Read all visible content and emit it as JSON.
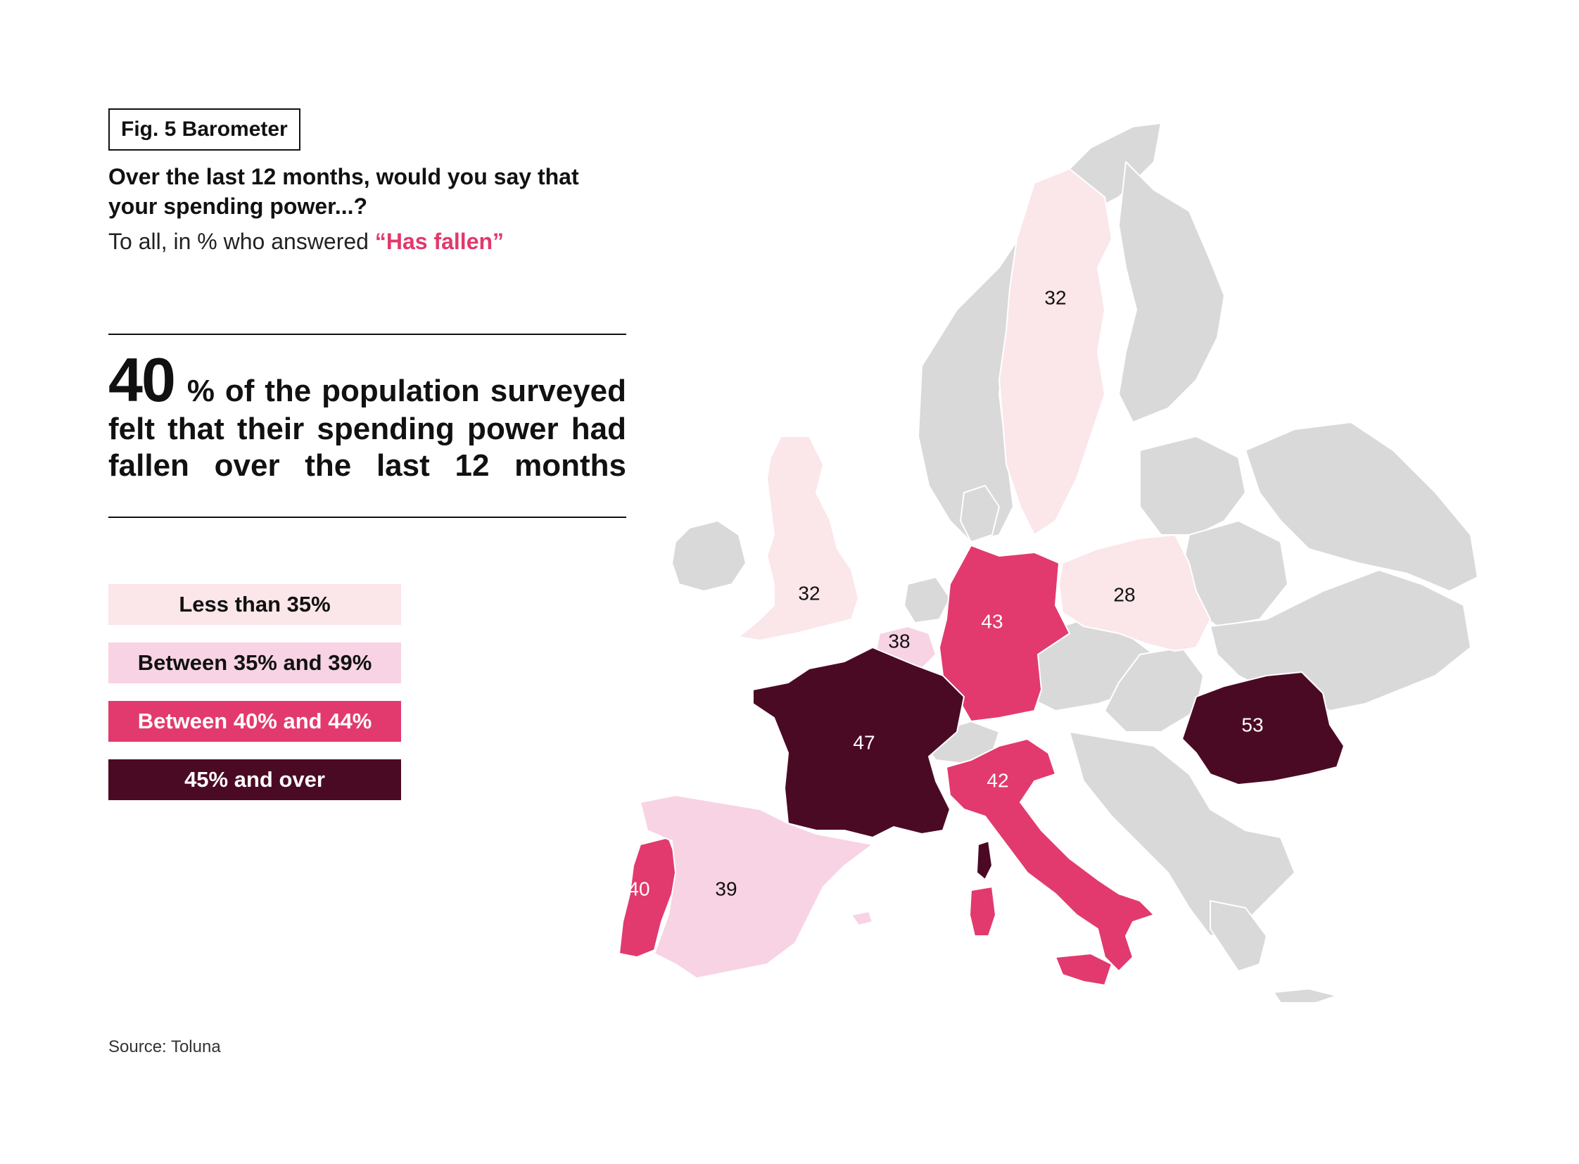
{
  "figure_label": "Fig. 5 Barometer",
  "question": "Over the last 12 months, would you say that your spending power...?",
  "subtitle_prefix": "To all, in % who answered ",
  "subtitle_highlight": "“Has fallen”",
  "headline": {
    "value": "40",
    "text": "% of the population surveyed felt that their spending power had fallen over the last 12 months"
  },
  "legend": [
    {
      "label": "Less than 35%",
      "color": "#fbe6ea",
      "text_color": "#111111"
    },
    {
      "label": "Between 35% and 39%",
      "color": "#f7d3e3",
      "text_color": "#111111"
    },
    {
      "label": "Between 40% and 44%",
      "color": "#e23a6e",
      "text_color": "#ffffff"
    },
    {
      "label": "45% and over",
      "color": "#4b0a24",
      "text_color": "#ffffff"
    }
  ],
  "source": "Source: Toluna",
  "colors": {
    "no_data": "#d9d9d9",
    "accent": "#e0396b"
  },
  "chart_data": {
    "type": "choropleth",
    "values": [
      {
        "country": "Sweden",
        "value": 32
      },
      {
        "country": "United Kingdom",
        "value": 32
      },
      {
        "country": "Poland",
        "value": 28
      },
      {
        "country": "Germany",
        "value": 43
      },
      {
        "country": "Belgium",
        "value": 38
      },
      {
        "country": "France",
        "value": 47
      },
      {
        "country": "Romania",
        "value": 53
      },
      {
        "country": "Italy",
        "value": 42
      },
      {
        "country": "Portugal",
        "value": 40
      },
      {
        "country": "Spain",
        "value": 39
      }
    ]
  }
}
